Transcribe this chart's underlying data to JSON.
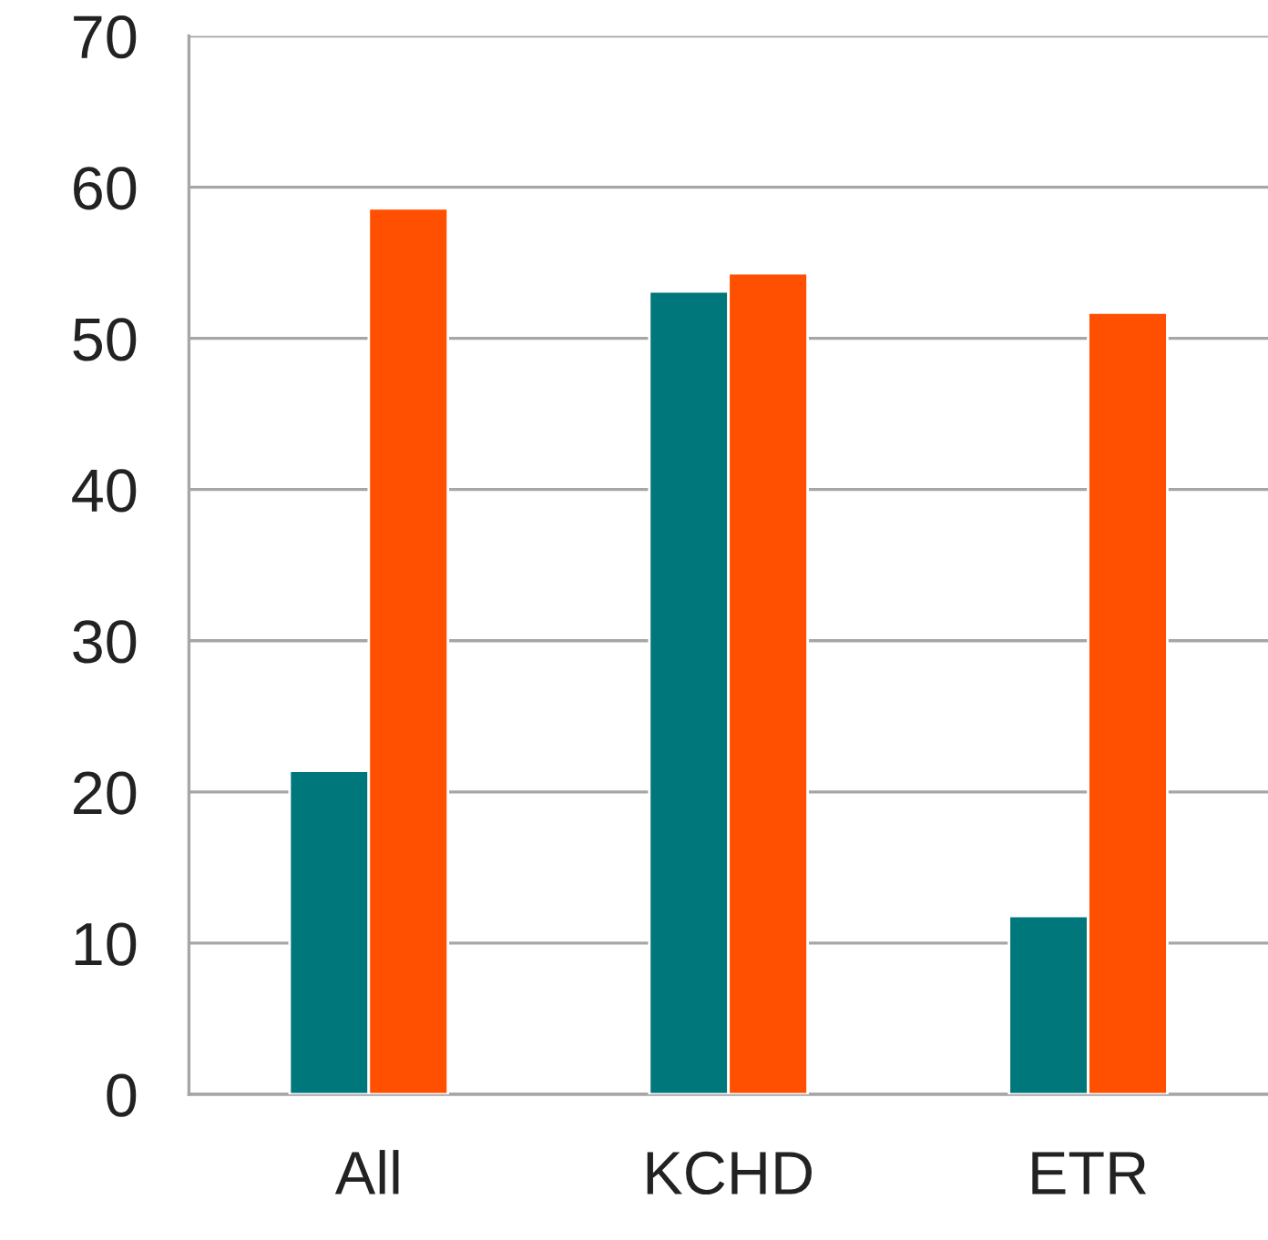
{
  "chart_data": {
    "type": "bar",
    "categories": [
      "All",
      "KCHD",
      "ETR"
    ],
    "series": [
      {
        "color": "#00777a",
        "values": [
          21.4,
          53.1,
          11.8
        ]
      },
      {
        "color": "#ff4f00",
        "values": [
          58.6,
          54.3,
          51.7
        ]
      }
    ],
    "ylim": [
      0,
      70
    ],
    "yticks": [
      0,
      10,
      20,
      30,
      40,
      50,
      60,
      70
    ],
    "grid": "y",
    "legend": false
  }
}
